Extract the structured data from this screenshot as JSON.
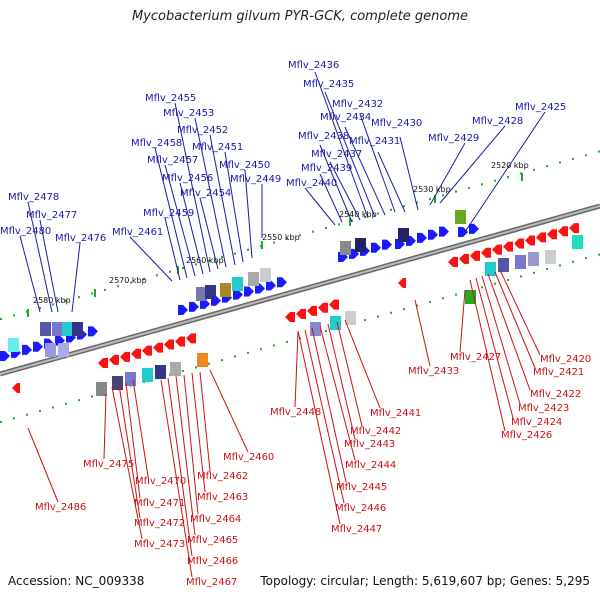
{
  "title": "Mycobacterium gilvum PYR-GCK, complete genome",
  "footer": {
    "accession": "Accession: NC_009338",
    "stats": "Topology: circular; Length: 5,619,607 bp; Genes: 5,295"
  },
  "ticks": [
    "2520 kbp",
    "2530 kbp",
    "2540 kbp",
    "2550 kbp",
    "2560 kbp",
    "2570 kbp",
    "2580 kbp"
  ],
  "top_labels": [
    "Mflv_2425",
    "Mflv_2428",
    "Mflv_2429",
    "Mflv_2430",
    "Mflv_2431",
    "Mflv_2432",
    "Mflv_2434",
    "Mflv_2435",
    "Mflv_2436",
    "Mflv_2437",
    "Mflv_2438",
    "Mflv_2439",
    "Mflv_2440",
    "Mflv_2449",
    "Mflv_2450",
    "Mflv_2451",
    "Mflv_2452",
    "Mflv_2453",
    "Mflv_2454",
    "Mflv_2455",
    "Mflv_2456",
    "Mflv_2457",
    "Mflv_2458",
    "Mflv_2459",
    "Mflv_2461",
    "Mflv_2476",
    "Mflv_2477",
    "Mflv_2478",
    "Mflv_2480"
  ],
  "bottom_labels": [
    "Mflv_2420",
    "Mflv_2421",
    "Mflv_2422",
    "Mflv_2423",
    "Mflv_2424",
    "Mflv_2426",
    "Mflv_2427",
    "Mflv_2433",
    "Mflv_2441",
    "Mflv_2442",
    "Mflv_2443",
    "Mflv_2444",
    "Mflv_2445",
    "Mflv_2446",
    "Mflv_2447",
    "Mflv_2448",
    "Mflv_2460",
    "Mflv_2462",
    "Mflv_2463",
    "Mflv_2464",
    "Mflv_2465",
    "Mflv_2466",
    "Mflv_2467",
    "Mflv_2470",
    "Mflv_2471",
    "Mflv_2472",
    "Mflv_2473",
    "Mflv_2475",
    "Mflv_2486"
  ],
  "colors": {
    "forward": "#1a1aff",
    "reverse": "#ff1111",
    "backbone": "#888888",
    "tick": "#22aa22"
  }
}
